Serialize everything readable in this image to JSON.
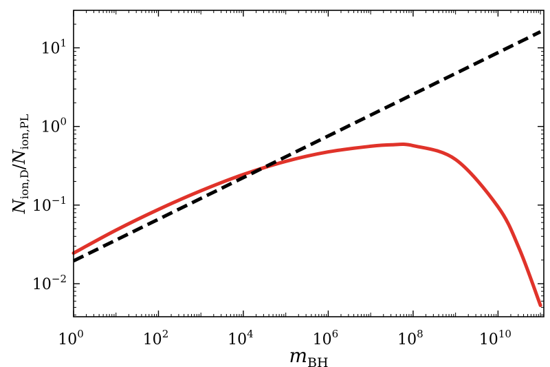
{
  "chart_data": {
    "type": "line",
    "title": "",
    "xlabel": "m_BH",
    "xlabel_parts": {
      "base": "m",
      "sub": "BH"
    },
    "ylabel": "Ṅ_ion,D / Ṅ_ion,PL",
    "ylabel_parts": {
      "num_base": "N",
      "num_sub": "ion,D",
      "slash": "/",
      "den_base": "N",
      "den_sub": "ion,PL"
    },
    "xscale": "log",
    "yscale": "log",
    "xlim": [
      1,
      120000000000
    ],
    "ylim": [
      0.0038,
      30
    ],
    "grid": false,
    "legend": "none",
    "x_ticks": [
      {
        "value": 1,
        "base": "10",
        "exp": "0"
      },
      {
        "value": 100,
        "base": "10",
        "exp": "2"
      },
      {
        "value": 10000,
        "base": "10",
        "exp": "4"
      },
      {
        "value": 1000000,
        "base": "10",
        "exp": "6"
      },
      {
        "value": 100000000,
        "base": "10",
        "exp": "8"
      },
      {
        "value": 10000000000,
        "base": "10",
        "exp": "10"
      }
    ],
    "y_ticks": [
      {
        "value": 0.01,
        "base": "10",
        "exp": "−2"
      },
      {
        "value": 0.1,
        "base": "10",
        "exp": "−1"
      },
      {
        "value": 1,
        "base": "10",
        "exp": "0"
      },
      {
        "value": 10,
        "base": "10",
        "exp": "1"
      }
    ],
    "series": [
      {
        "style": "solid",
        "color": "#e0332a",
        "x": [
          1,
          10,
          100,
          1000,
          10000,
          100000,
          1000000,
          10000000,
          31600000,
          100000000,
          1000000000,
          10000000000,
          31600000000,
          100000000000
        ],
        "y": [
          0.0245,
          0.048,
          0.088,
          0.152,
          0.245,
          0.36,
          0.475,
          0.56,
          0.585,
          0.57,
          0.38,
          0.095,
          0.028,
          0.0053
        ]
      },
      {
        "style": "dashed",
        "color": "#000000",
        "x": [
          1,
          100000000000
        ],
        "y": [
          0.0195,
          16
        ]
      }
    ]
  }
}
